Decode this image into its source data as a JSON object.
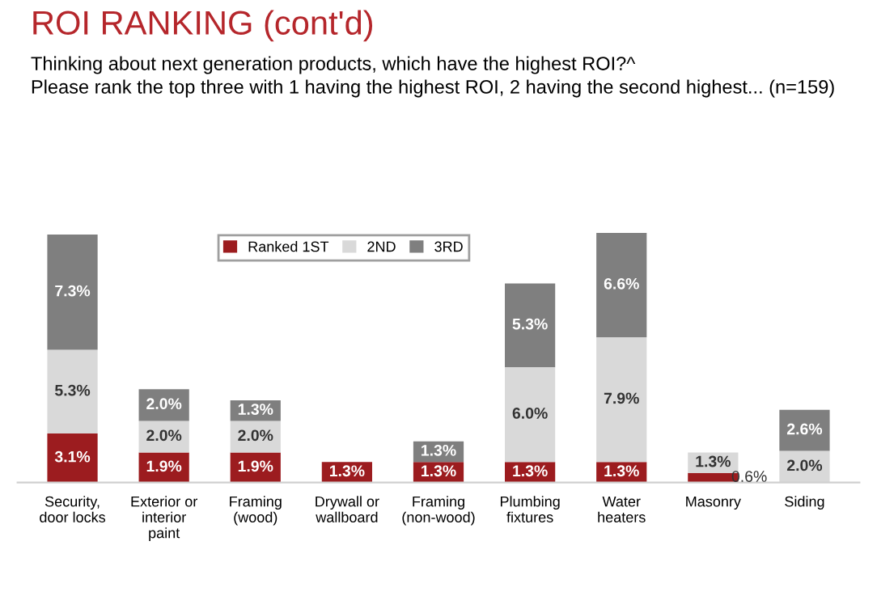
{
  "chart_data": {
    "type": "bar",
    "stacked": true,
    "title": "ROI RANKING (cont'd)",
    "subtitle": "Thinking about next generation products, which have the highest ROI?^\nPlease rank the top three with 1 having the highest ROI, 2 having the second highest... (n=159)",
    "categories": [
      "Security, door locks",
      "Exterior or interior paint",
      "Framing (wood)",
      "Drywall or wallboard",
      "Framing (non-wood)",
      "Plumbing fixtures",
      "Water heaters",
      "Masonry",
      "Siding"
    ],
    "series": [
      {
        "name": "Ranked 1ST",
        "color": "#9c1c1f",
        "values": [
          3.1,
          1.9,
          1.9,
          1.3,
          1.3,
          1.3,
          1.3,
          0.6,
          null
        ],
        "value_labels": [
          "3.1%",
          "1.9%",
          "1.9%",
          "1.3%",
          "1.3%",
          "1.3%",
          "1.3%",
          "0.6%",
          null
        ]
      },
      {
        "name": "2ND",
        "color": "#d9d9d9",
        "values": [
          5.3,
          2.0,
          2.0,
          null,
          null,
          6.0,
          7.9,
          1.3,
          2.0
        ],
        "value_labels": [
          "5.3%",
          "2.0%",
          "2.0%",
          null,
          null,
          "6.0%",
          "7.9%",
          "1.3%",
          "2.0%"
        ]
      },
      {
        "name": "3RD",
        "color": "#7f7f7f",
        "values": [
          7.3,
          2.0,
          1.3,
          null,
          1.3,
          5.3,
          6.6,
          null,
          2.6
        ],
        "value_labels": [
          "7.3%",
          "2.0%",
          "1.3%",
          null,
          "1.3%",
          "5.3%",
          "6.6%",
          null,
          "2.6%"
        ]
      }
    ],
    "legend": "top left",
    "grid": false
  }
}
